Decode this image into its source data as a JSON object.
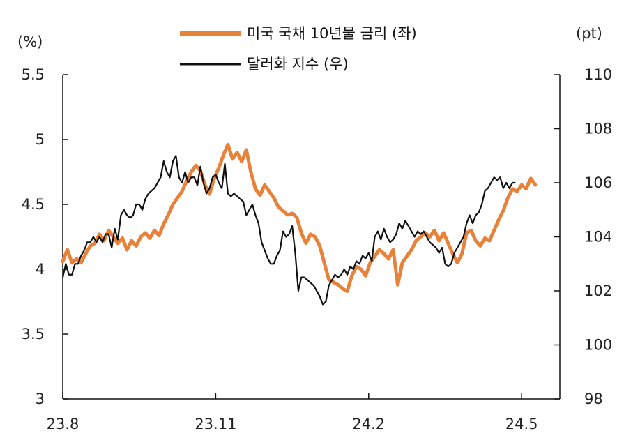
{
  "chart_data": {
    "type": "line",
    "left_unit": "(%)",
    "right_unit": "(pt)",
    "x_tick_labels": [
      "23.8",
      "23.11",
      "24.2",
      "24.5"
    ],
    "y_left_ticks": [
      "5.5",
      "5",
      "4.5",
      "4",
      "3.5",
      "3"
    ],
    "y_right_ticks": [
      "110",
      "108",
      "106",
      "104",
      "102",
      "100",
      "98"
    ],
    "ylim_left": [
      3,
      5.5
    ],
    "ylim_right": [
      98,
      110
    ],
    "x_range_days": [
      0,
      300
    ],
    "series": [
      {
        "name": "미국 국채 10년물 금리 (좌)",
        "axis": "left",
        "color": "#E8823A",
        "points": [
          [
            0,
            4.06
          ],
          [
            3,
            4.15
          ],
          [
            6,
            4.05
          ],
          [
            9,
            4.08
          ],
          [
            12,
            4.05
          ],
          [
            15,
            4.12
          ],
          [
            18,
            4.18
          ],
          [
            21,
            4.2
          ],
          [
            24,
            4.27
          ],
          [
            27,
            4.22
          ],
          [
            30,
            4.3
          ],
          [
            33,
            4.25
          ],
          [
            36,
            4.2
          ],
          [
            39,
            4.24
          ],
          [
            42,
            4.15
          ],
          [
            45,
            4.22
          ],
          [
            48,
            4.18
          ],
          [
            51,
            4.25
          ],
          [
            54,
            4.28
          ],
          [
            57,
            4.24
          ],
          [
            60,
            4.3
          ],
          [
            63,
            4.26
          ],
          [
            66,
            4.35
          ],
          [
            69,
            4.42
          ],
          [
            72,
            4.5
          ],
          [
            75,
            4.55
          ],
          [
            78,
            4.6
          ],
          [
            81,
            4.68
          ],
          [
            84,
            4.75
          ],
          [
            87,
            4.8
          ],
          [
            90,
            4.76
          ],
          [
            93,
            4.65
          ],
          [
            96,
            4.58
          ],
          [
            99,
            4.7
          ],
          [
            102,
            4.78
          ],
          [
            105,
            4.88
          ],
          [
            108,
            4.96
          ],
          [
            111,
            4.85
          ],
          [
            114,
            4.9
          ],
          [
            117,
            4.83
          ],
          [
            120,
            4.92
          ],
          [
            123,
            4.75
          ],
          [
            126,
            4.62
          ],
          [
            129,
            4.57
          ],
          [
            132,
            4.65
          ],
          [
            135,
            4.6
          ],
          [
            138,
            4.55
          ],
          [
            141,
            4.48
          ],
          [
            144,
            4.45
          ],
          [
            147,
            4.42
          ],
          [
            150,
            4.43
          ],
          [
            153,
            4.4
          ],
          [
            156,
            4.28
          ],
          [
            159,
            4.2
          ],
          [
            162,
            4.27
          ],
          [
            165,
            4.25
          ],
          [
            168,
            4.18
          ],
          [
            171,
            4.05
          ],
          [
            174,
            3.92
          ],
          [
            177,
            3.9
          ],
          [
            180,
            3.88
          ],
          [
            183,
            3.85
          ],
          [
            186,
            3.83
          ],
          [
            189,
            3.95
          ],
          [
            192,
            4.02
          ],
          [
            195,
            4.0
          ],
          [
            198,
            3.95
          ],
          [
            201,
            4.05
          ],
          [
            204,
            4.1
          ],
          [
            207,
            4.15
          ],
          [
            210,
            4.12
          ],
          [
            213,
            4.08
          ],
          [
            216,
            4.15
          ],
          [
            219,
            3.88
          ],
          [
            222,
            4.05
          ],
          [
            225,
            4.1
          ],
          [
            228,
            4.15
          ],
          [
            231,
            4.22
          ],
          [
            234,
            4.25
          ],
          [
            237,
            4.28
          ],
          [
            240,
            4.25
          ],
          [
            243,
            4.3
          ],
          [
            246,
            4.22
          ],
          [
            249,
            4.28
          ],
          [
            252,
            4.2
          ],
          [
            255,
            4.12
          ],
          [
            258,
            4.05
          ],
          [
            261,
            4.12
          ],
          [
            264,
            4.28
          ],
          [
            267,
            4.3
          ],
          [
            270,
            4.22
          ],
          [
            273,
            4.18
          ],
          [
            276,
            4.24
          ],
          [
            279,
            4.22
          ],
          [
            282,
            4.3
          ],
          [
            285,
            4.38
          ],
          [
            288,
            4.45
          ],
          [
            291,
            4.55
          ],
          [
            294,
            4.62
          ],
          [
            297,
            4.6
          ],
          [
            300,
            4.65
          ],
          [
            303,
            4.62
          ],
          [
            306,
            4.7
          ],
          [
            309,
            4.65
          ]
        ]
      },
      {
        "name": "달러화 지수 (우)",
        "axis": "right",
        "color": "#111111",
        "points": [
          [
            0,
            102.5
          ],
          [
            2,
            103.0
          ],
          [
            4,
            102.6
          ],
          [
            6,
            102.6
          ],
          [
            8,
            103.0
          ],
          [
            10,
            103.0
          ],
          [
            12,
            103.3
          ],
          [
            14,
            103.5
          ],
          [
            16,
            103.8
          ],
          [
            18,
            103.8
          ],
          [
            20,
            104.0
          ],
          [
            22,
            103.8
          ],
          [
            24,
            104.0
          ],
          [
            26,
            103.8
          ],
          [
            28,
            104.1
          ],
          [
            30,
            104.1
          ],
          [
            32,
            103.6
          ],
          [
            34,
            104.3
          ],
          [
            36,
            103.9
          ],
          [
            38,
            104.8
          ],
          [
            40,
            105.0
          ],
          [
            42,
            104.8
          ],
          [
            44,
            104.7
          ],
          [
            46,
            104.8
          ],
          [
            48,
            105.2
          ],
          [
            50,
            105.2
          ],
          [
            52,
            105.0
          ],
          [
            54,
            105.4
          ],
          [
            56,
            105.6
          ],
          [
            58,
            105.7
          ],
          [
            60,
            105.8
          ],
          [
            62,
            106.0
          ],
          [
            64,
            106.2
          ],
          [
            66,
            106.8
          ],
          [
            68,
            106.4
          ],
          [
            70,
            106.2
          ],
          [
            72,
            106.8
          ],
          [
            74,
            107.0
          ],
          [
            76,
            106.2
          ],
          [
            78,
            106.0
          ],
          [
            80,
            106.4
          ],
          [
            82,
            106.0
          ],
          [
            84,
            106.2
          ],
          [
            86,
            106.2
          ],
          [
            88,
            105.9
          ],
          [
            90,
            106.6
          ],
          [
            92,
            106.0
          ],
          [
            94,
            105.6
          ],
          [
            96,
            105.8
          ],
          [
            98,
            106.2
          ],
          [
            100,
            106.3
          ],
          [
            102,
            106.0
          ],
          [
            104,
            105.8
          ],
          [
            106,
            106.7
          ],
          [
            108,
            105.6
          ],
          [
            110,
            105.5
          ],
          [
            112,
            105.6
          ],
          [
            114,
            105.5
          ],
          [
            116,
            105.4
          ],
          [
            118,
            105.3
          ],
          [
            120,
            104.8
          ],
          [
            122,
            105.0
          ],
          [
            124,
            105.2
          ],
          [
            126,
            104.8
          ],
          [
            128,
            104.5
          ],
          [
            130,
            103.8
          ],
          [
            132,
            103.5
          ],
          [
            134,
            103.2
          ],
          [
            136,
            103.0
          ],
          [
            138,
            103.0
          ],
          [
            140,
            103.3
          ],
          [
            142,
            103.5
          ],
          [
            144,
            104.2
          ],
          [
            146,
            104.0
          ],
          [
            148,
            104.1
          ],
          [
            150,
            104.4
          ],
          [
            152,
            103.4
          ],
          [
            154,
            102.0
          ],
          [
            156,
            102.5
          ],
          [
            158,
            102.5
          ],
          [
            160,
            102.4
          ],
          [
            162,
            102.3
          ],
          [
            164,
            102.2
          ],
          [
            166,
            102.0
          ],
          [
            168,
            101.8
          ],
          [
            170,
            101.5
          ],
          [
            172,
            101.6
          ],
          [
            174,
            102.2
          ],
          [
            176,
            102.4
          ],
          [
            178,
            102.6
          ],
          [
            180,
            102.5
          ],
          [
            182,
            102.6
          ],
          [
            184,
            102.8
          ],
          [
            186,
            102.6
          ],
          [
            188,
            102.9
          ],
          [
            190,
            102.8
          ],
          [
            192,
            103.1
          ],
          [
            194,
            103.0
          ],
          [
            196,
            103.3
          ],
          [
            198,
            103.2
          ],
          [
            200,
            103.4
          ],
          [
            202,
            103.1
          ],
          [
            204,
            104.0
          ],
          [
            206,
            104.2
          ],
          [
            208,
            103.9
          ],
          [
            210,
            104.3
          ],
          [
            212,
            104.0
          ],
          [
            214,
            103.8
          ],
          [
            216,
            103.9
          ],
          [
            218,
            104.1
          ],
          [
            220,
            104.5
          ],
          [
            222,
            104.3
          ],
          [
            224,
            104.6
          ],
          [
            226,
            104.4
          ],
          [
            228,
            104.2
          ],
          [
            230,
            104.0
          ],
          [
            232,
            104.2
          ],
          [
            234,
            104.1
          ],
          [
            236,
            104.2
          ],
          [
            238,
            104.0
          ],
          [
            240,
            103.8
          ],
          [
            242,
            103.7
          ],
          [
            244,
            103.6
          ],
          [
            246,
            103.4
          ],
          [
            248,
            103.6
          ],
          [
            250,
            103.0
          ],
          [
            252,
            102.9
          ],
          [
            254,
            103.0
          ],
          [
            256,
            103.4
          ],
          [
            258,
            103.6
          ],
          [
            260,
            103.8
          ],
          [
            262,
            104.0
          ],
          [
            264,
            104.5
          ],
          [
            266,
            104.8
          ],
          [
            268,
            104.5
          ],
          [
            270,
            104.8
          ],
          [
            272,
            104.9
          ],
          [
            274,
            105.2
          ],
          [
            276,
            105.7
          ],
          [
            278,
            105.8
          ],
          [
            280,
            106.0
          ],
          [
            282,
            106.2
          ],
          [
            284,
            106.1
          ],
          [
            286,
            106.2
          ],
          [
            288,
            105.8
          ],
          [
            290,
            106.0
          ],
          [
            292,
            105.8
          ],
          [
            294,
            106.0
          ],
          [
            296,
            106.0
          ]
        ]
      }
    ]
  }
}
